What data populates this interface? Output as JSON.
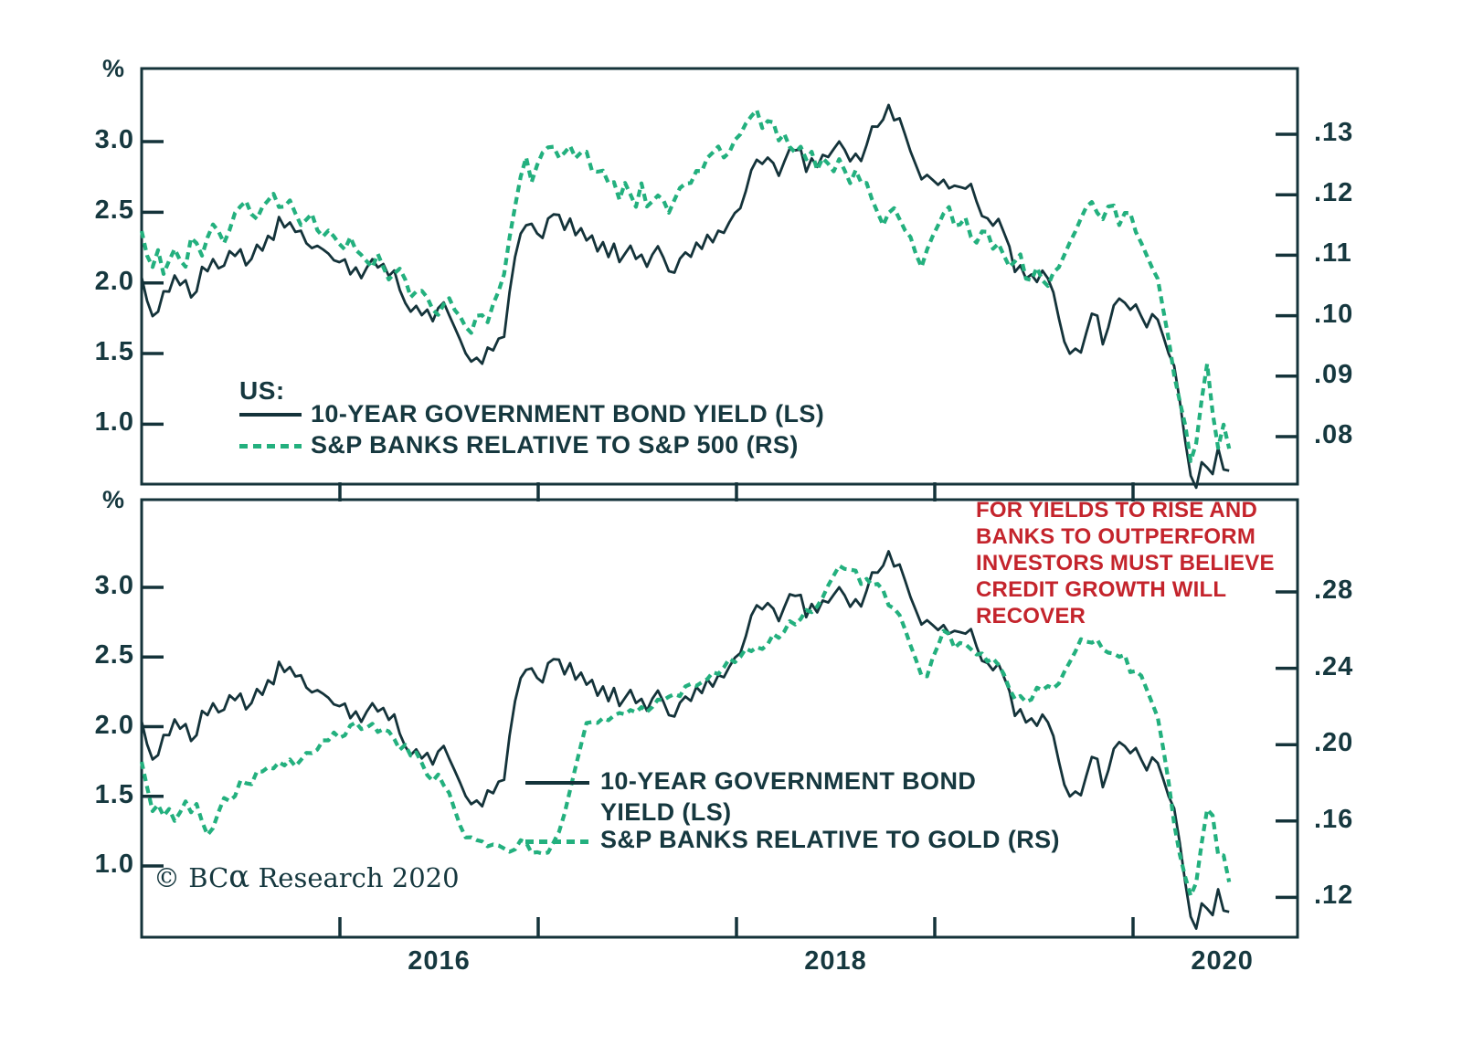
{
  "colors": {
    "line_dark": "#14333a",
    "line_green": "#23b07e",
    "text_dark": "#16383f",
    "annotation_red": "#c4242c",
    "background": "#ffffff"
  },
  "annotation": {
    "lines": [
      "FOR YIELDS TO RISE AND",
      "BANKS TO OUTPERFORM",
      "INVESTORS MUST BELIEVE",
      "CREDIT GROWTH WILL",
      "RECOVER"
    ]
  },
  "copyright": {
    "prefix": "© BC",
    "alpha": "α",
    "suffix": " Research 2020"
  },
  "chart_data": {
    "type": "line",
    "x_unit": "year (decimal)",
    "x_start": 2015.0,
    "x_step": 0.0277,
    "x_end_plot": 2020.83,
    "x_axis": {
      "tick_years": [
        2016,
        2017,
        2018,
        2019,
        2020
      ],
      "labels": [
        {
          "text": "2016",
          "year": 2016.5
        },
        {
          "text": "2018",
          "year": 2018.5
        },
        {
          "text": "2020",
          "year": 2020.45
        }
      ]
    },
    "bond_yield_values": [
      2.04,
      1.88,
      1.76,
      1.81,
      1.95,
      1.93,
      2.05,
      1.97,
      2.01,
      1.91,
      1.94,
      2.12,
      2.09,
      2.16,
      2.11,
      2.12,
      2.21,
      2.19,
      2.23,
      2.13,
      2.19,
      2.27,
      2.23,
      2.33,
      2.29,
      2.47,
      2.39,
      2.42,
      2.37,
      2.37,
      2.29,
      2.26,
      2.25,
      2.23,
      2.2,
      2.15,
      2.16,
      2.17,
      2.06,
      2.12,
      2.03,
      2.11,
      2.17,
      2.09,
      2.13,
      2.05,
      2.09,
      1.97,
      1.86,
      1.79,
      1.84,
      1.76,
      1.81,
      1.73,
      1.81,
      1.87,
      1.78,
      1.69,
      1.61,
      1.49,
      1.43,
      1.47,
      1.42,
      1.55,
      1.53,
      1.6,
      1.63,
      1.94,
      2.18,
      2.35,
      2.39,
      2.41,
      2.36,
      2.32,
      2.47,
      2.49,
      2.47,
      2.38,
      2.45,
      2.33,
      2.39,
      2.29,
      2.34,
      2.24,
      2.29,
      2.19,
      2.27,
      2.13,
      2.21,
      2.26,
      2.17,
      2.21,
      2.11,
      2.21,
      2.27,
      2.17,
      2.08,
      2.06,
      2.16,
      2.23,
      2.19,
      2.29,
      2.25,
      2.33,
      2.29,
      2.37,
      2.34,
      2.43,
      2.49,
      2.53,
      2.67,
      2.8,
      2.87,
      2.84,
      2.87,
      2.85,
      2.76,
      2.85,
      2.96,
      2.94,
      2.95,
      2.8,
      2.87,
      2.81,
      2.9,
      2.88,
      2.96,
      3.01,
      2.94,
      2.87,
      2.91,
      2.86,
      2.98,
      3.09,
      3.1,
      3.16,
      3.26,
      3.17,
      3.17,
      3.04,
      2.93,
      2.82,
      2.73,
      2.77,
      2.72,
      2.7,
      2.74,
      2.67,
      2.7,
      2.67,
      2.65,
      2.7,
      2.57,
      2.48,
      2.47,
      2.4,
      2.46,
      2.36,
      2.25,
      2.08,
      2.11,
      2.02,
      2.07,
      2.01,
      2.1,
      2.04,
      1.92,
      1.75,
      1.58,
      1.49,
      1.54,
      1.5,
      1.65,
      1.8,
      1.77,
      1.57,
      1.68,
      1.82,
      1.89,
      1.86,
      1.81,
      1.86,
      1.76,
      1.69,
      1.79,
      1.73,
      1.62,
      1.49,
      1.4,
      1.18,
      0.89,
      0.64,
      0.56,
      0.72,
      0.69,
      0.65,
      0.82,
      0.68,
      0.67
    ],
    "panels": [
      {
        "name": "top",
        "left_axis": {
          "unit": "%",
          "ticks": [
            "3.0",
            "2.5",
            "2.0",
            "1.5",
            "1.0"
          ],
          "tick_values": [
            3.0,
            2.5,
            2.0,
            1.5,
            1.0
          ]
        },
        "right_axis": {
          "ticks": [
            ".13",
            ".12",
            ".11",
            ".10",
            ".09",
            ".08"
          ],
          "tick_values": [
            0.13,
            0.12,
            0.11,
            0.1,
            0.09,
            0.08
          ]
        },
        "legend": {
          "heading": "US:",
          "items": [
            {
              "label": "10-YEAR GOVERNMENT BOND YIELD (LS)",
              "display_lines": [
                "10-YEAR GOVERNMENT BOND YIELD (LS)"
              ],
              "style": "solid"
            },
            {
              "label": "S&P BANKS RELATIVE TO S&P 500 (RS)",
              "display_lines": [
                "S&P BANKS RELATIVE TO S&P 500 (RS)"
              ],
              "style": "dashed"
            }
          ]
        },
        "series": [
          {
            "name": "10-year government bond yield",
            "axis": "left",
            "values_ref": "bond_yield_values"
          },
          {
            "name": "S&P Banks relative to S&P 500",
            "axis": "right",
            "values": [
              0.114,
              0.11,
              0.108,
              0.111,
              0.107,
              0.109,
              0.111,
              0.109,
              0.108,
              0.113,
              0.112,
              0.11,
              0.113,
              0.115,
              0.114,
              0.112,
              0.114,
              0.117,
              0.118,
              0.119,
              0.117,
              0.116,
              0.118,
              0.119,
              0.12,
              0.118,
              0.118,
              0.119,
              0.117,
              0.115,
              0.116,
              0.117,
              0.114,
              0.113,
              0.114,
              0.113,
              0.112,
              0.111,
              0.113,
              0.111,
              0.11,
              0.109,
              0.108,
              0.11,
              0.108,
              0.106,
              0.107,
              0.108,
              0.106,
              0.103,
              0.104,
              0.104,
              0.103,
              0.101,
              0.1,
              0.102,
              0.103,
              0.101,
              0.1,
              0.098,
              0.097,
              0.1,
              0.1,
              0.099,
              0.102,
              0.104,
              0.107,
              0.113,
              0.118,
              0.123,
              0.126,
              0.122,
              0.125,
              0.127,
              0.128,
              0.128,
              0.126,
              0.127,
              0.128,
              0.126,
              0.127,
              0.127,
              0.124,
              0.124,
              0.124,
              0.122,
              0.122,
              0.119,
              0.122,
              0.12,
              0.118,
              0.122,
              0.118,
              0.119,
              0.12,
              0.119,
              0.117,
              0.119,
              0.121,
              0.122,
              0.122,
              0.124,
              0.124,
              0.126,
              0.127,
              0.128,
              0.126,
              0.127,
              0.129,
              0.13,
              0.132,
              0.133,
              0.134,
              0.131,
              0.132,
              0.132,
              0.129,
              0.13,
              0.128,
              0.127,
              0.128,
              0.126,
              0.127,
              0.124,
              0.126,
              0.125,
              0.124,
              0.126,
              0.124,
              0.122,
              0.124,
              0.122,
              0.122,
              0.119,
              0.117,
              0.115,
              0.117,
              0.118,
              0.116,
              0.114,
              0.113,
              0.11,
              0.108,
              0.111,
              0.113,
              0.115,
              0.117,
              0.118,
              0.115,
              0.115,
              0.116,
              0.113,
              0.112,
              0.114,
              0.114,
              0.111,
              0.112,
              0.11,
              0.108,
              0.109,
              0.11,
              0.106,
              0.106,
              0.108,
              0.106,
              0.105,
              0.107,
              0.108,
              0.11,
              0.112,
              0.114,
              0.116,
              0.118,
              0.119,
              0.117,
              0.116,
              0.118,
              0.118,
              0.115,
              0.117,
              0.117,
              0.114,
              0.112,
              0.11,
              0.108,
              0.106,
              0.101,
              0.096,
              0.09,
              0.086,
              0.082,
              0.076,
              0.079,
              0.086,
              0.092,
              0.084,
              0.078,
              0.082,
              0.078
            ]
          }
        ]
      },
      {
        "name": "bottom",
        "left_axis": {
          "unit": "%",
          "ticks": [
            "3.0",
            "2.5",
            "2.0",
            "1.5",
            "1.0"
          ],
          "tick_values": [
            3.0,
            2.5,
            2.0,
            1.5,
            1.0
          ]
        },
        "right_axis": {
          "ticks": [
            ".28",
            ".24",
            ".20",
            ".16",
            ".12"
          ],
          "tick_values": [
            0.28,
            0.24,
            0.2,
            0.16,
            0.12
          ]
        },
        "legend": {
          "heading": "",
          "items": [
            {
              "label": "10-YEAR GOVERNMENT BOND YIELD (LS)",
              "display_lines": [
                "10-YEAR GOVERNMENT BOND",
                "YIELD (LS)"
              ],
              "style": "solid"
            },
            {
              "label": "S&P BANKS RELATIVE TO GOLD (RS)",
              "display_lines": [
                "S&P BANKS RELATIVE TO GOLD (RS)"
              ],
              "style": "dashed"
            }
          ]
        },
        "series": [
          {
            "name": "10-year government bond yield",
            "axis": "left",
            "values_ref": "bond_yield_values"
          },
          {
            "name": "S&P Banks relative to gold",
            "axis": "right",
            "values": [
              0.191,
              0.178,
              0.165,
              0.169,
              0.163,
              0.166,
              0.16,
              0.164,
              0.17,
              0.165,
              0.169,
              0.16,
              0.153,
              0.156,
              0.165,
              0.172,
              0.17,
              0.173,
              0.181,
              0.18,
              0.18,
              0.186,
              0.186,
              0.188,
              0.187,
              0.191,
              0.189,
              0.192,
              0.189,
              0.192,
              0.196,
              0.196,
              0.197,
              0.202,
              0.202,
              0.206,
              0.204,
              0.205,
              0.21,
              0.212,
              0.208,
              0.209,
              0.211,
              0.206,
              0.208,
              0.207,
              0.203,
              0.198,
              0.2,
              0.194,
              0.196,
              0.19,
              0.184,
              0.181,
              0.184,
              0.179,
              0.175,
              0.166,
              0.158,
              0.151,
              0.151,
              0.15,
              0.149,
              0.147,
              0.148,
              0.147,
              0.146,
              0.144,
              0.145,
              0.15,
              0.148,
              0.143,
              0.144,
              0.143,
              0.144,
              0.149,
              0.154,
              0.164,
              0.176,
              0.188,
              0.2,
              0.211,
              0.212,
              0.212,
              0.214,
              0.213,
              0.215,
              0.216,
              0.216,
              0.218,
              0.217,
              0.22,
              0.217,
              0.22,
              0.224,
              0.223,
              0.225,
              0.226,
              0.225,
              0.231,
              0.232,
              0.231,
              0.233,
              0.234,
              0.238,
              0.237,
              0.24,
              0.245,
              0.243,
              0.246,
              0.251,
              0.249,
              0.251,
              0.25,
              0.252,
              0.258,
              0.256,
              0.259,
              0.265,
              0.263,
              0.266,
              0.271,
              0.269,
              0.272,
              0.277,
              0.283,
              0.289,
              0.294,
              0.292,
              0.292,
              0.291,
              0.284,
              0.287,
              0.283,
              0.284,
              0.281,
              0.273,
              0.272,
              0.268,
              0.26,
              0.252,
              0.244,
              0.236,
              0.236,
              0.245,
              0.252,
              0.26,
              0.258,
              0.251,
              0.253,
              0.252,
              0.25,
              0.247,
              0.248,
              0.244,
              0.245,
              0.242,
              0.237,
              0.229,
              0.224,
              0.225,
              0.222,
              0.224,
              0.23,
              0.229,
              0.231,
              0.229,
              0.232,
              0.238,
              0.243,
              0.249,
              0.255,
              0.254,
              0.254,
              0.255,
              0.25,
              0.248,
              0.247,
              0.246,
              0.247,
              0.238,
              0.239,
              0.236,
              0.229,
              0.222,
              0.214,
              0.198,
              0.18,
              0.158,
              0.143,
              0.131,
              0.121,
              0.128,
              0.148,
              0.166,
              0.163,
              0.142,
              0.142,
              0.128
            ]
          }
        ]
      }
    ]
  }
}
